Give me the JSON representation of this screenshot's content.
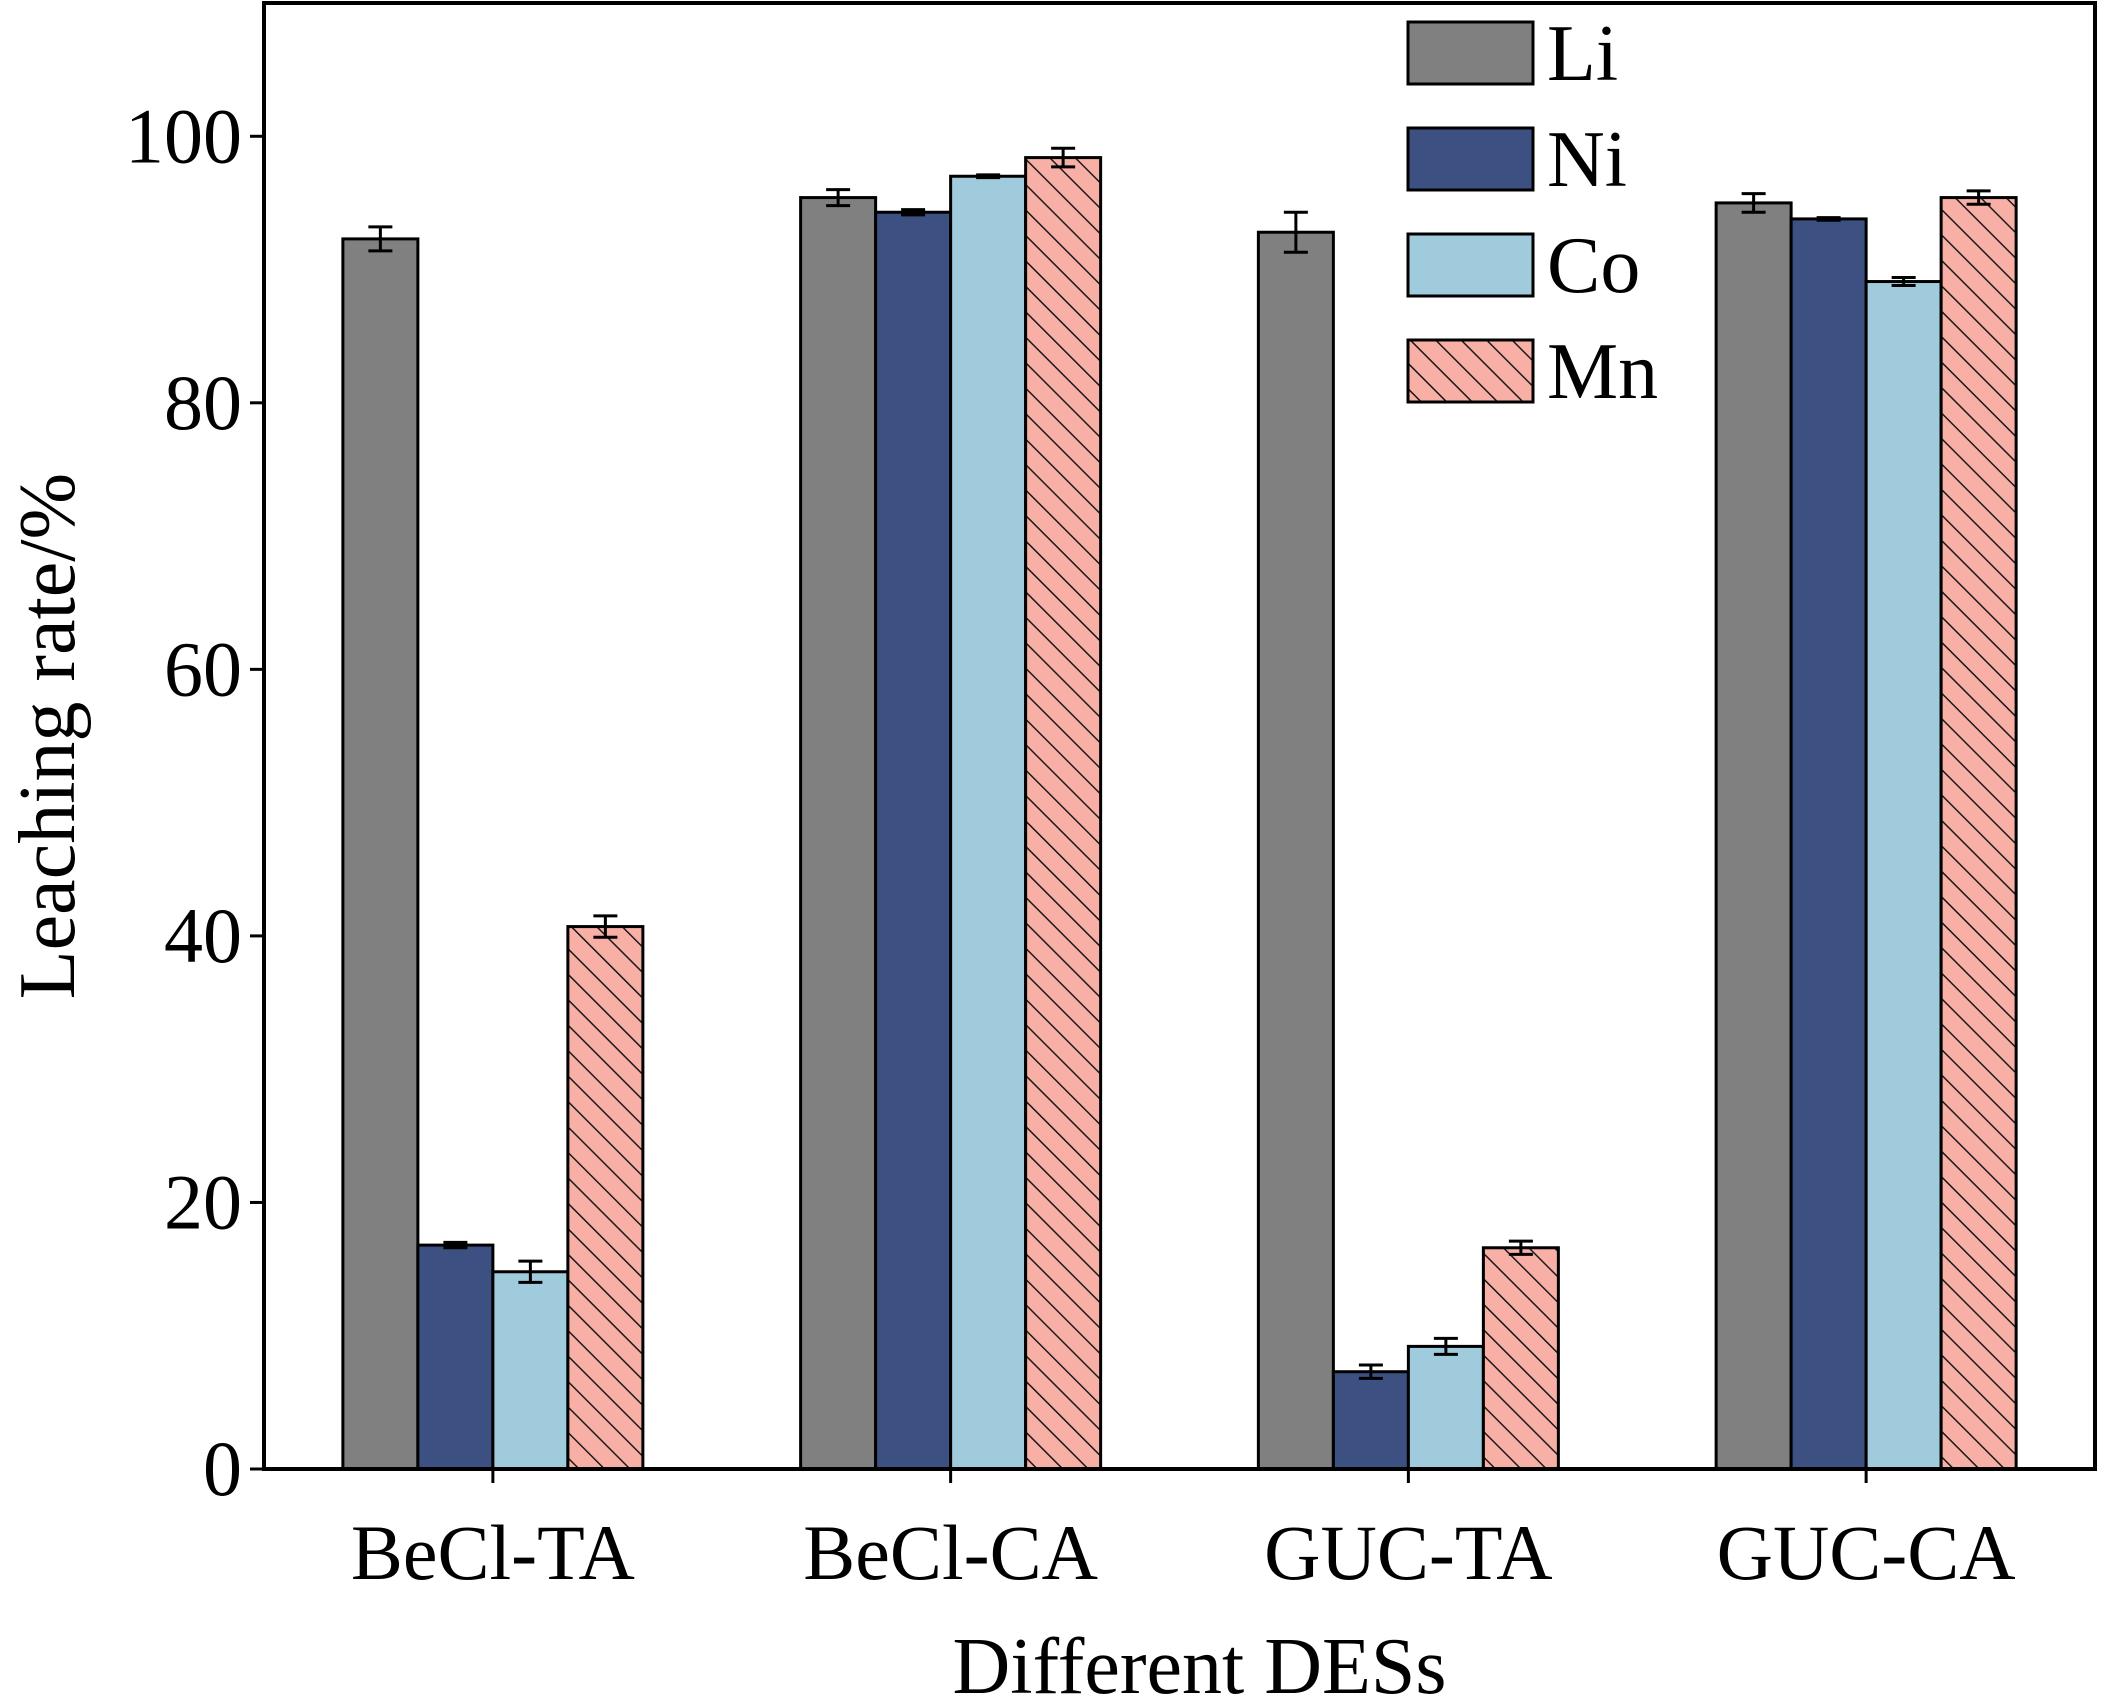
{
  "chart_data": {
    "type": "bar",
    "xlabel": "Different DESs",
    "ylabel": "Leaching rate/%",
    "ylim": [
      0,
      110
    ],
    "yticks": [
      0,
      20,
      40,
      60,
      80,
      100
    ],
    "categories": [
      "BeCl-TA",
      "BeCl-CA",
      "GUC-TA",
      "GUC-CA"
    ],
    "series": [
      {
        "name": "Li",
        "color": "#808080",
        "pattern": "solid",
        "values": [
          92.3,
          95.4,
          92.8,
          95.0
        ],
        "errors": [
          0.9,
          0.6,
          1.5,
          0.7
        ]
      },
      {
        "name": "Ni",
        "color": "#3c5082",
        "pattern": "solid",
        "values": [
          16.8,
          94.3,
          7.3,
          93.8
        ],
        "errors": [
          0.2,
          0.2,
          0.5,
          0.1
        ]
      },
      {
        "name": "Co",
        "color": "#9fcbdc",
        "pattern": "solid",
        "values": [
          14.8,
          97.0,
          9.2,
          89.1
        ],
        "errors": [
          0.8,
          0.1,
          0.6,
          0.3
        ]
      },
      {
        "name": "Mn",
        "color": "#f8b0a6",
        "pattern": "hatch",
        "values": [
          40.7,
          98.4,
          16.6,
          95.4
        ],
        "errors": [
          0.8,
          0.7,
          0.5,
          0.5
        ]
      }
    ],
    "legend_position": "top-right",
    "grid": false
  }
}
